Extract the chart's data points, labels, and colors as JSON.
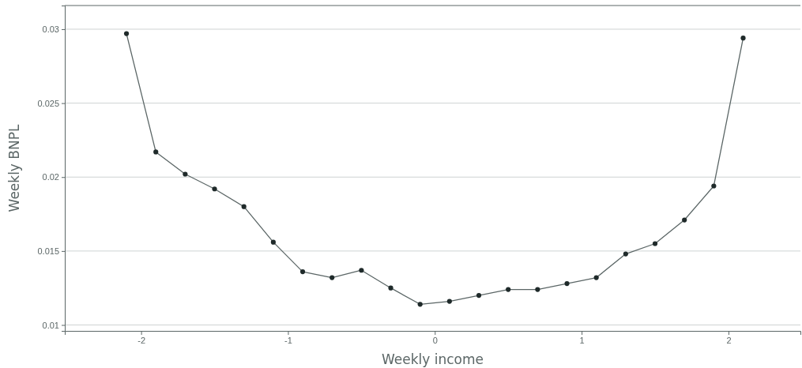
{
  "chart_data": {
    "type": "line",
    "xlabel": "Weekly income",
    "ylabel": "Weekly BNPL",
    "x": [
      -2.1,
      -1.9,
      -1.7,
      -1.5,
      -1.3,
      -1.1,
      -0.9,
      -0.7,
      -0.5,
      -0.3,
      -0.1,
      0.1,
      0.3,
      0.5,
      0.7,
      0.9,
      1.1,
      1.3,
      1.5,
      1.7,
      1.9,
      2.1
    ],
    "series": [
      {
        "color": "#5b6666",
        "values": [
          0.0297,
          0.0217,
          0.0202,
          0.0192,
          0.018,
          0.0156,
          0.0136,
          0.0132,
          0.0137,
          0.0125,
          0.0114,
          0.0116,
          0.012,
          0.0124,
          0.0124,
          0.0128,
          0.0132,
          0.0148,
          0.0155,
          0.0171,
          0.0194,
          0.0294
        ]
      }
    ],
    "xlim": [
      -2.52,
      2.49
    ],
    "ylim": [
      0.0096,
      0.0316
    ],
    "xticks": [
      {
        "value": -2,
        "label": "-2"
      },
      {
        "value": -1,
        "label": "-1"
      },
      0,
      1,
      2
    ],
    "yticks": [
      {
        "value": 0.01,
        "label": "0.01"
      },
      {
        "value": 0.015,
        "label": "0.015"
      },
      {
        "value": 0.02,
        "label": "0.02"
      },
      {
        "value": 0.025,
        "label": "0.025"
      },
      {
        "value": 0.03,
        "label": "0.03"
      }
    ],
    "grid": "y",
    "marker": "circle",
    "line_style": "solid"
  }
}
